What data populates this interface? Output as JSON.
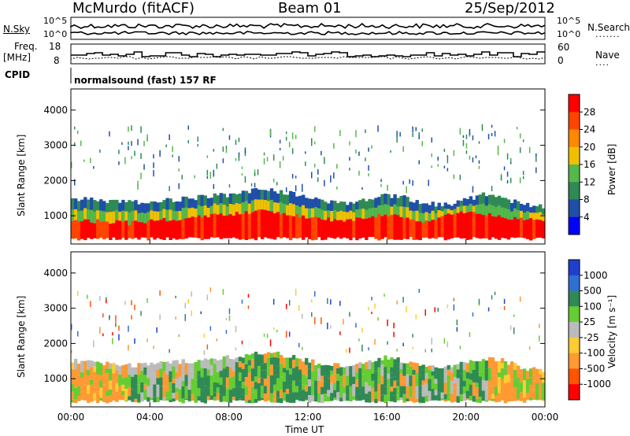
{
  "header": {
    "station": "McMurdo (fitACF)",
    "beam": "Beam 01",
    "date": "25/Sep/2012"
  },
  "top_panels": {
    "nsky_label": "N.Sky",
    "nsky_tick_hi": "10^5",
    "nsky_tick_lo": "10^0",
    "nsearch_label": "N.Search",
    "nsearch_tick_hi": "10^5",
    "nsearch_tick_lo": "10^0",
    "freq_label": "Freq.",
    "freq_unit": "[MHz]",
    "freq_tick_hi": "18",
    "freq_tick_lo": "8",
    "nave_label": "Nave",
    "nave_tick_hi": "60",
    "nave_tick_lo": "0",
    "cpid_label": "CPID",
    "cpid_value": "normalsound (fast) 157 RF"
  },
  "chart_data": [
    {
      "type": "heatmap",
      "name": "power",
      "ylabel": "Slant Range [km]",
      "xlabel": "",
      "x_ticks": [
        "00:00",
        "04:00",
        "08:00",
        "12:00",
        "16:00",
        "20:00",
        "00:00"
      ],
      "y_ticks": [
        1000,
        2000,
        3000,
        4000
      ],
      "ylim": [
        200,
        4600
      ],
      "xlim_hours": [
        0,
        24
      ],
      "colorbar_label": "Power [dB]",
      "colorbar_ticks": [
        "4",
        "8",
        "12",
        "16",
        "20",
        "24",
        "28"
      ],
      "colorbar_colors": [
        "#0000ff",
        "#1f4fa8",
        "#2f8a55",
        "#55b84a",
        "#f0c000",
        "#ff8800",
        "#ff4400",
        "#ff0000"
      ],
      "band_top_km": [
        1500,
        1450,
        1400,
        1380,
        1400,
        1450,
        1500,
        1550,
        1600,
        1700,
        1750,
        1650,
        1500,
        1400,
        1350,
        1450,
        1600,
        1500,
        1350,
        1300,
        1450,
        1600,
        1500,
        1300,
        1250
      ],
      "core_top_km": [
        900,
        850,
        820,
        800,
        850,
        900,
        950,
        1000,
        1050,
        1100,
        1150,
        1050,
        950,
        900,
        850,
        950,
        1050,
        900,
        800,
        1000,
        1100,
        1050,
        950,
        900,
        850
      ]
    },
    {
      "type": "heatmap",
      "name": "velocity",
      "ylabel": "Slant Range [km]",
      "xlabel": "Time UT",
      "x_ticks": [
        "00:00",
        "04:00",
        "08:00",
        "12:00",
        "16:00",
        "20:00",
        "00:00"
      ],
      "y_ticks": [
        1000,
        2000,
        3000,
        4000
      ],
      "ylim": [
        200,
        4600
      ],
      "colorbar_label": "Velocity [m s⁻¹]",
      "colorbar_ticks": [
        "1000",
        "500",
        "100",
        "25",
        "-25",
        "-100",
        "-500",
        "-1000"
      ],
      "colorbar_colors": [
        "#1f3fd0",
        "#2f6fd0",
        "#2f8a55",
        "#66cc33",
        "#bbbbbb",
        "#ffcc33",
        "#ff9933",
        "#ff5500",
        "#ff0000"
      ]
    }
  ]
}
